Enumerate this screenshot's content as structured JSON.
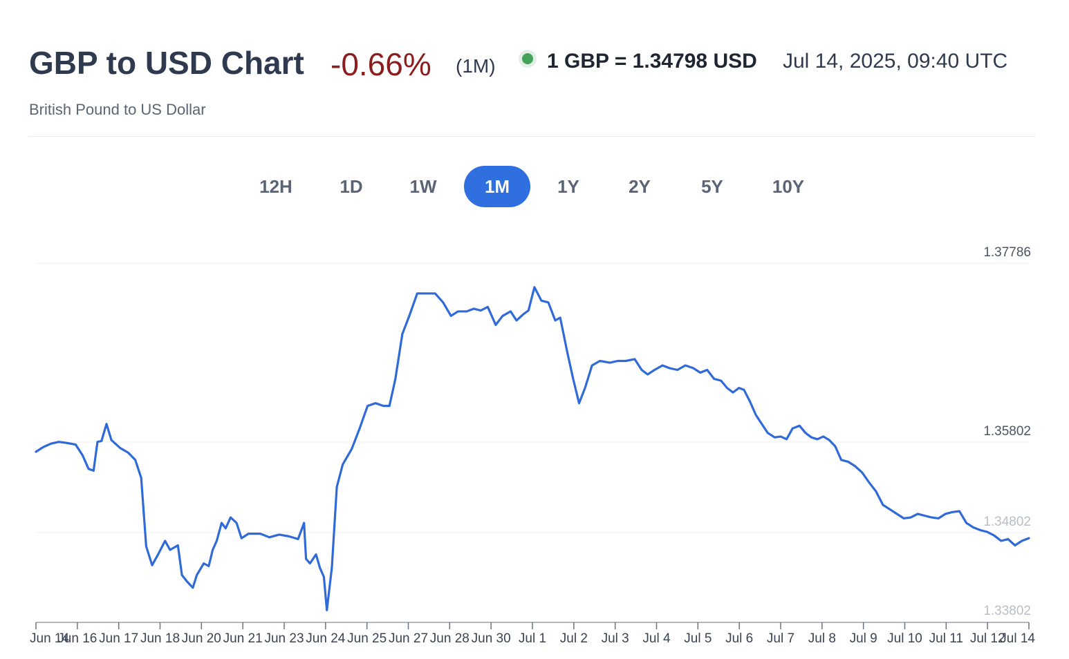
{
  "header": {
    "title": "GBP to USD Chart",
    "change": "-0.66%",
    "period": "(1M)",
    "rate": "1 GBP = 1.34798 USD",
    "timestamp": "Jul 14, 2025, 09:40 UTC",
    "subtitle": "British Pound to US Dollar"
  },
  "ranges": [
    "12H",
    "1D",
    "1W",
    "1M",
    "1Y",
    "2Y",
    "5Y",
    "10Y"
  ],
  "active_range": "1M",
  "colors": {
    "line": "#2f6ad8",
    "active": "#2f6fe0",
    "change_negative": "#8b1d1d",
    "live_dot": "#44a35a"
  },
  "chart_data": {
    "type": "line",
    "y_tick_labels": [
      "1.37786",
      "1.35802",
      "1.34802",
      "1.33802"
    ],
    "x_tick_labels": [
      "Jun 14",
      "Jun 16",
      "Jun 17",
      "Jun 18",
      "Jun 20",
      "Jun 21",
      "Jun 23",
      "Jun 24",
      "Jun 25",
      "Jun 27",
      "Jun 28",
      "Jun 30",
      "Jul 1",
      "Jul 2",
      "Jul 3",
      "Jul 4",
      "Jul 5",
      "Jul 6",
      "Jul 7",
      "Jul 8",
      "Jul 9",
      "Jul 10",
      "Jul 11",
      "Jul 12",
      "Jul 14"
    ],
    "x_index_range": [
      0,
      100
    ],
    "ylim": [
      1.33802,
      1.37786
    ],
    "grid": "horizontal",
    "series": [
      {
        "points": [
          [
            0,
            1.3569
          ],
          [
            0.7,
            1.3574
          ],
          [
            1.5,
            1.3578
          ],
          [
            2.3,
            1.358
          ],
          [
            3.0,
            1.3579
          ],
          [
            4.0,
            1.3577
          ],
          [
            4.7,
            1.3565
          ],
          [
            5.3,
            1.355
          ],
          [
            5.8,
            1.3548
          ],
          [
            6.2,
            1.358
          ],
          [
            6.6,
            1.3581
          ],
          [
            7.1,
            1.36
          ],
          [
            7.6,
            1.3582
          ],
          [
            8.5,
            1.3573
          ],
          [
            9.3,
            1.3568
          ],
          [
            10.0,
            1.356
          ],
          [
            10.6,
            1.354
          ],
          [
            11.1,
            1.3464
          ],
          [
            11.7,
            1.3443
          ],
          [
            12.3,
            1.3455
          ],
          [
            13.0,
            1.347
          ],
          [
            13.5,
            1.346
          ],
          [
            14.3,
            1.3465
          ],
          [
            14.7,
            1.3432
          ],
          [
            15.2,
            1.3425
          ],
          [
            15.8,
            1.3418
          ],
          [
            16.2,
            1.3432
          ],
          [
            16.9,
            1.3445
          ],
          [
            17.4,
            1.3442
          ],
          [
            17.8,
            1.346
          ],
          [
            18.2,
            1.347
          ],
          [
            18.7,
            1.349
          ],
          [
            19.1,
            1.3484
          ],
          [
            19.6,
            1.3496
          ],
          [
            20.2,
            1.349
          ],
          [
            20.7,
            1.3473
          ],
          [
            21.4,
            1.3478
          ],
          [
            22.6,
            1.3478
          ],
          [
            23.5,
            1.3474
          ],
          [
            24.5,
            1.3477
          ],
          [
            25.5,
            1.3475
          ],
          [
            26.4,
            1.3472
          ],
          [
            27.0,
            1.349
          ],
          [
            27.2,
            1.345
          ],
          [
            27.6,
            1.3445
          ],
          [
            28.2,
            1.3455
          ],
          [
            28.6,
            1.344
          ],
          [
            29.0,
            1.343
          ],
          [
            29.3,
            1.3393
          ],
          [
            29.8,
            1.344
          ],
          [
            30.3,
            1.353
          ],
          [
            30.9,
            1.3555
          ],
          [
            31.8,
            1.3572
          ],
          [
            32.6,
            1.3595
          ],
          [
            33.4,
            1.362
          ],
          [
            34.2,
            1.3623
          ],
          [
            35.0,
            1.362
          ],
          [
            35.6,
            1.362
          ],
          [
            36.2,
            1.365
          ],
          [
            36.9,
            1.37
          ],
          [
            37.6,
            1.372
          ],
          [
            38.4,
            1.3745
          ],
          [
            39.0,
            1.3745
          ],
          [
            40.2,
            1.3745
          ],
          [
            41.0,
            1.3735
          ],
          [
            41.8,
            1.372
          ],
          [
            42.5,
            1.3725
          ],
          [
            43.4,
            1.3725
          ],
          [
            44.1,
            1.3728
          ],
          [
            44.8,
            1.3726
          ],
          [
            45.5,
            1.373
          ],
          [
            46.3,
            1.371
          ],
          [
            47.0,
            1.372
          ],
          [
            47.8,
            1.3725
          ],
          [
            48.4,
            1.3715
          ],
          [
            49.1,
            1.3722
          ],
          [
            49.6,
            1.3726
          ],
          [
            50.2,
            1.3752
          ],
          [
            50.9,
            1.3737
          ],
          [
            51.6,
            1.3735
          ],
          [
            52.3,
            1.3715
          ],
          [
            52.8,
            1.3718
          ],
          [
            53.5,
            1.368
          ],
          [
            54.1,
            1.365
          ],
          [
            54.7,
            1.3623
          ],
          [
            55.3,
            1.364
          ],
          [
            56.0,
            1.3665
          ],
          [
            56.8,
            1.367
          ],
          [
            57.8,
            1.3668
          ],
          [
            58.6,
            1.367
          ],
          [
            59.4,
            1.367
          ],
          [
            60.3,
            1.3672
          ],
          [
            61.0,
            1.366
          ],
          [
            61.6,
            1.3655
          ],
          [
            62.3,
            1.366
          ],
          [
            63.1,
            1.3665
          ],
          [
            63.8,
            1.3662
          ],
          [
            64.6,
            1.366
          ],
          [
            65.4,
            1.3665
          ],
          [
            66.2,
            1.3662
          ],
          [
            66.9,
            1.3657
          ],
          [
            67.6,
            1.366
          ],
          [
            68.3,
            1.365
          ],
          [
            69.0,
            1.3648
          ],
          [
            69.6,
            1.364
          ],
          [
            70.2,
            1.3635
          ],
          [
            70.8,
            1.364
          ],
          [
            71.3,
            1.3638
          ],
          [
            71.9,
            1.3625
          ],
          [
            72.5,
            1.361
          ],
          [
            73.1,
            1.36
          ],
          [
            73.7,
            1.359
          ],
          [
            74.4,
            1.3585
          ],
          [
            75.0,
            1.3586
          ],
          [
            75.6,
            1.3583
          ],
          [
            76.2,
            1.3595
          ],
          [
            76.9,
            1.3598
          ],
          [
            77.5,
            1.359
          ],
          [
            78.1,
            1.3585
          ],
          [
            78.7,
            1.3583
          ],
          [
            79.3,
            1.3586
          ],
          [
            79.9,
            1.3582
          ],
          [
            80.5,
            1.3575
          ],
          [
            81.1,
            1.356
          ],
          [
            81.8,
            1.3558
          ],
          [
            82.5,
            1.3553
          ],
          [
            83.2,
            1.3546
          ],
          [
            83.9,
            1.3535
          ],
          [
            84.6,
            1.3525
          ],
          [
            85.3,
            1.351
          ],
          [
            86.0,
            1.3505
          ],
          [
            86.7,
            1.35
          ],
          [
            87.4,
            1.3495
          ],
          [
            88.1,
            1.3496
          ],
          [
            88.8,
            1.35
          ],
          [
            89.5,
            1.3498
          ],
          [
            90.2,
            1.3496
          ],
          [
            90.9,
            1.3495
          ],
          [
            91.6,
            1.35
          ],
          [
            92.3,
            1.3502
          ],
          [
            93.0,
            1.3503
          ],
          [
            93.7,
            1.349
          ],
          [
            94.4,
            1.3485
          ],
          [
            95.1,
            1.3482
          ],
          [
            95.8,
            1.348
          ],
          [
            96.5,
            1.3476
          ],
          [
            97.2,
            1.347
          ],
          [
            97.9,
            1.3472
          ],
          [
            98.6,
            1.3465
          ],
          [
            99.3,
            1.347
          ],
          [
            100.0,
            1.3473
          ]
        ]
      }
    ]
  }
}
